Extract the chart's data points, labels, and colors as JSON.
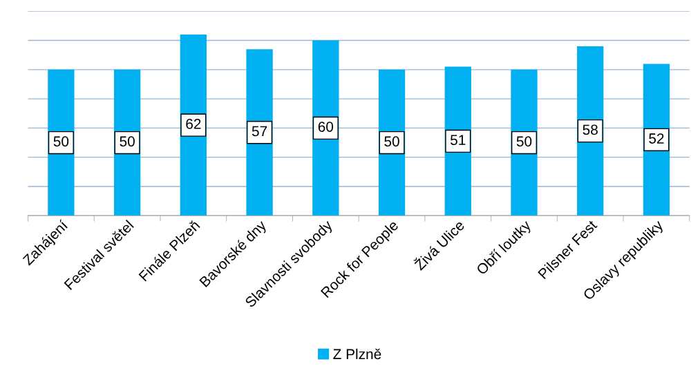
{
  "chart_data": {
    "type": "bar",
    "categories": [
      "Zahájení",
      "Festival světel",
      "Finále Plzeň",
      "Bavorské dny",
      "Slavnosti svobody",
      "Rock for People",
      "Živá Ulice",
      "Obří loutky",
      "Pilsner Fest",
      "Oslavy republiky"
    ],
    "series": [
      {
        "name": "Z Plzně",
        "color": "#00b0f0",
        "values": [
          50,
          50,
          62,
          57,
          60,
          50,
          51,
          50,
          58,
          52
        ]
      }
    ],
    "ylim": [
      0,
      70
    ],
    "yticks": [
      {
        "value": 0,
        "label": null
      },
      {
        "value": 10,
        "label": null
      },
      {
        "value": 20,
        "label": null
      },
      {
        "value": 30,
        "label": null
      },
      {
        "value": 40,
        "label": null
      },
      {
        "value": 50,
        "label": null
      },
      {
        "value": 60,
        "label": null
      },
      {
        "value": 70,
        "label": null
      }
    ],
    "tick_labels": "x",
    "grid": "y",
    "legend": "bottom",
    "data_labels": true
  }
}
